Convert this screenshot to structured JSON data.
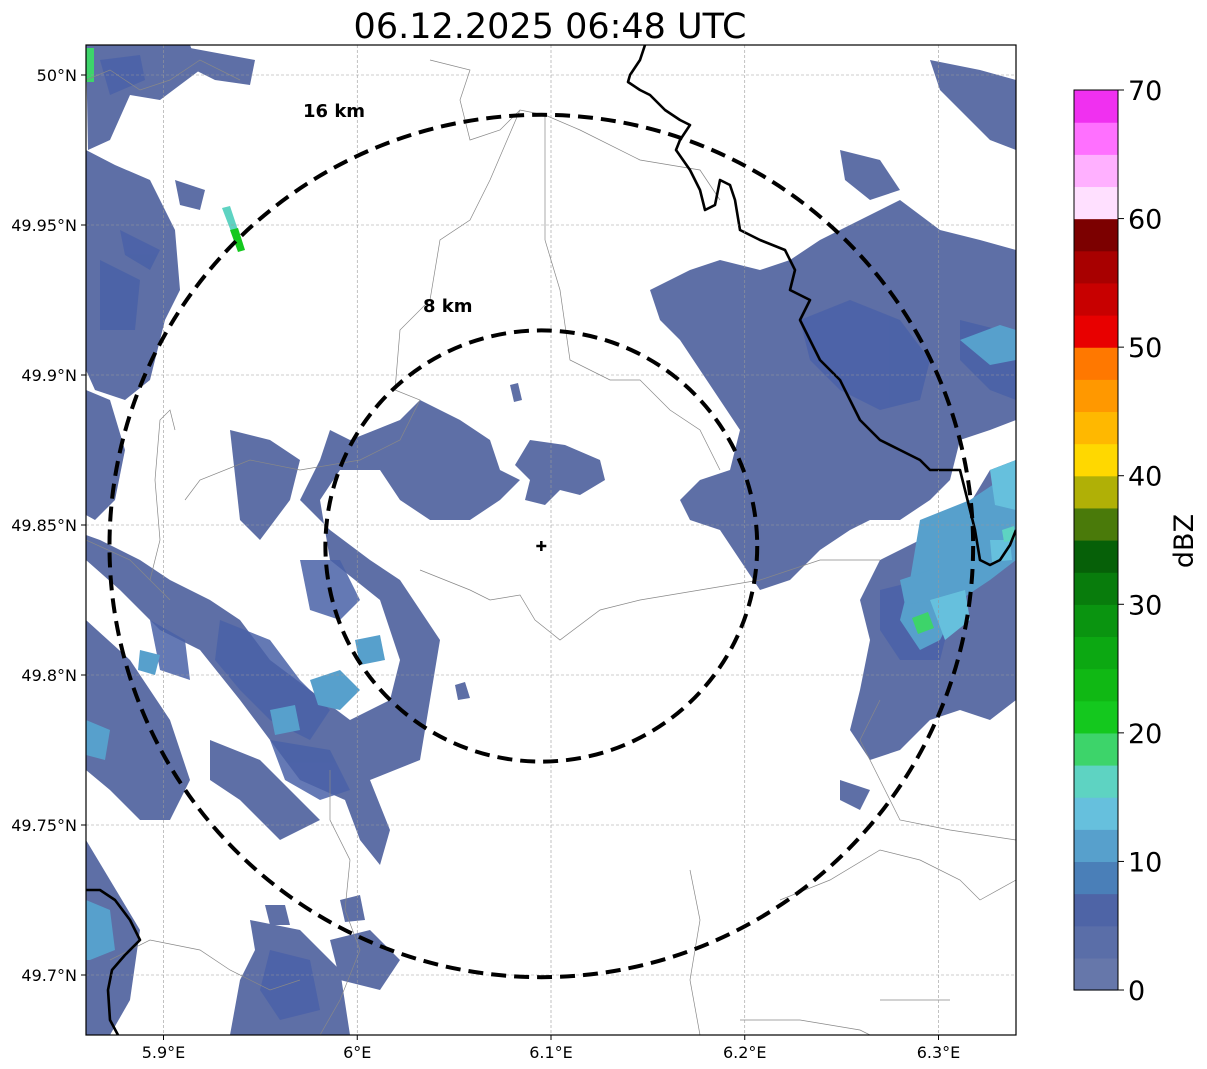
{
  "title": "06.12.2025 06:48 UTC",
  "map": {
    "lon_range": [
      5.86,
      6.34
    ],
    "lat_range": [
      49.68,
      50.01
    ],
    "x_ticks": [
      {
        "value": 5.9,
        "label": "5.9°E"
      },
      {
        "value": 6.0,
        "label": "6°E"
      },
      {
        "value": 6.1,
        "label": "6.1°E"
      },
      {
        "value": 6.2,
        "label": "6.2°E"
      },
      {
        "value": 6.3,
        "label": "6.3°E"
      }
    ],
    "y_ticks": [
      {
        "value": 50.0,
        "label": "50°N"
      },
      {
        "value": 49.95,
        "label": "49.95°N"
      },
      {
        "value": 49.9,
        "label": "49.9°N"
      },
      {
        "value": 49.85,
        "label": "49.85°N"
      },
      {
        "value": 49.8,
        "label": "49.8°N"
      },
      {
        "value": 49.75,
        "label": "49.75°N"
      },
      {
        "value": 49.7,
        "label": "49.7°N"
      }
    ],
    "radar_site": {
      "lon": 6.095,
      "lat": 49.843
    },
    "rings": [
      {
        "radius_km": 8,
        "label": "8 km"
      },
      {
        "radius_km": 16,
        "label": "16 km"
      }
    ],
    "ring_labels": {
      "r8": "8 km",
      "r16": "16 km"
    }
  },
  "colorbar": {
    "label": "dBZ",
    "min": 0,
    "max": 70,
    "ticks": [
      {
        "value": 0,
        "label": "0"
      },
      {
        "value": 10,
        "label": "10"
      },
      {
        "value": 20,
        "label": "20"
      },
      {
        "value": 30,
        "label": "30"
      },
      {
        "value": 40,
        "label": "40"
      },
      {
        "value": 50,
        "label": "50"
      },
      {
        "value": 60,
        "label": "60"
      },
      {
        "value": 70,
        "label": "70"
      }
    ],
    "colors": [
      "#6677aa",
      "#5a6ea8",
      "#4e64a6",
      "#4a7fb8",
      "#57a0cc",
      "#66c0dd",
      "#5ed3c2",
      "#3dd46a",
      "#14c81e",
      "#10b814",
      "#0ca812",
      "#0a9410",
      "#087c0c",
      "#066008",
      "#4a7a0a",
      "#b0b006",
      "#ffd800",
      "#ffb800",
      "#ff9800",
      "#ff7800",
      "#e80000",
      "#c80000",
      "#a80000",
      "#7c0000",
      "#ffe0ff",
      "#ffb0ff",
      "#ff70ff",
      "#f030f0"
    ]
  }
}
